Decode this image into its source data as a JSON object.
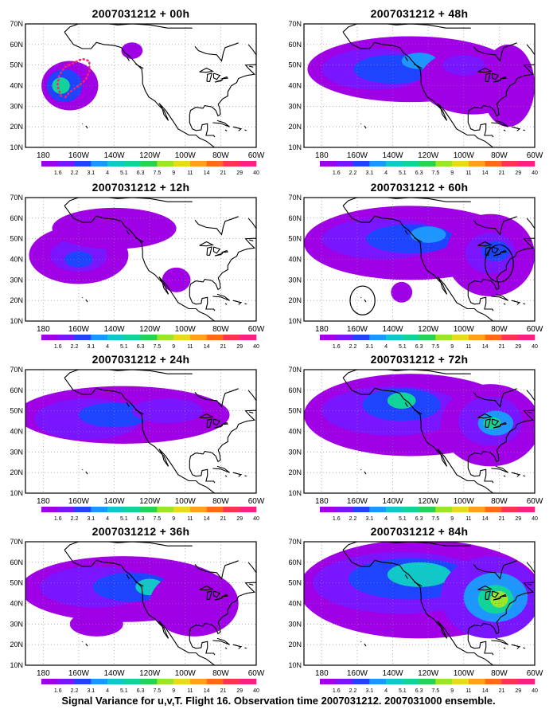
{
  "figure": {
    "caption": "Signal Variance for u,v,T. Flight 16. Observation time 2007031212. 2007031000 ensemble."
  },
  "axes": {
    "lat_labels": [
      "10N",
      "20N",
      "30N",
      "40N",
      "50N",
      "60N",
      "70N"
    ],
    "lon_labels": [
      "180",
      "160W",
      "140W",
      "120W",
      "100W",
      "80W",
      "60W"
    ],
    "lon_range": [
      -190,
      -60
    ],
    "lat_range": [
      10,
      70
    ]
  },
  "colorbar": {
    "labels": [
      "1.6",
      "2.2",
      "3.1",
      "4",
      "5.1",
      "6.3",
      "7.5",
      "9",
      "11",
      "14",
      "21",
      "29",
      "40"
    ],
    "colors": [
      "#ffffff",
      "#a000e6",
      "#7a16ff",
      "#1e44ff",
      "#1e96ff",
      "#10c8c8",
      "#10d49a",
      "#2ad252",
      "#9ae628",
      "#e6dc1a",
      "#ffa01e",
      "#ff6a1a",
      "#ff3250",
      "#ff1e82"
    ]
  },
  "panels": [
    {
      "title": "2007031212 + 00h",
      "col": 0,
      "row": 0,
      "blobs": [
        [
          -165,
          40,
          16,
          12,
          1
        ],
        [
          -168,
          40,
          10,
          8,
          3
        ],
        [
          -170,
          40,
          5,
          4,
          6
        ],
        [
          -130,
          57,
          6,
          4,
          1
        ]
      ],
      "dots": true,
      "circles": []
    },
    {
      "title": "2007031212 + 48h",
      "col": 1,
      "row": 0,
      "blobs": [
        [
          -130,
          48,
          58,
          16,
          1
        ],
        [
          -150,
          48,
          30,
          10,
          2
        ],
        [
          -140,
          48,
          22,
          7,
          3
        ],
        [
          -125,
          52,
          10,
          4,
          4
        ],
        [
          -95,
          42,
          30,
          16,
          1
        ],
        [
          -75,
          40,
          15,
          20,
          1
        ],
        [
          -100,
          50,
          12,
          5,
          2
        ]
      ],
      "dots": false,
      "circles": []
    },
    {
      "title": "2007031212 + 12h",
      "col": 0,
      "row": 1,
      "blobs": [
        [
          -160,
          42,
          28,
          14,
          1
        ],
        [
          -160,
          42,
          16,
          8,
          2
        ],
        [
          -160,
          40,
          8,
          4,
          3
        ],
        [
          -140,
          55,
          35,
          10,
          1
        ],
        [
          -105,
          30,
          8,
          6,
          1
        ]
      ],
      "dots": false,
      "circles": []
    },
    {
      "title": "2007031212 + 60h",
      "col": 1,
      "row": 1,
      "blobs": [
        [
          -130,
          48,
          60,
          18,
          1
        ],
        [
          -145,
          50,
          35,
          10,
          2
        ],
        [
          -130,
          50,
          25,
          7,
          3
        ],
        [
          -120,
          52,
          10,
          4,
          4
        ],
        [
          -85,
          42,
          25,
          20,
          1
        ],
        [
          -85,
          43,
          14,
          10,
          2
        ],
        [
          -82,
          44,
          8,
          5,
          3
        ],
        [
          -135,
          24,
          6,
          5,
          1
        ]
      ],
      "dots": false,
      "circles": [
        [
          -157,
          20,
          7,
          7
        ],
        [
          -80,
          38,
          8,
          9
        ]
      ]
    },
    {
      "title": "2007031212 + 24h",
      "col": 0,
      "row": 2,
      "blobs": [
        [
          -135,
          48,
          60,
          14,
          1
        ],
        [
          -155,
          46,
          30,
          10,
          2
        ],
        [
          -140,
          48,
          20,
          6,
          3
        ],
        [
          -110,
          50,
          20,
          6,
          2
        ]
      ],
      "dots": false,
      "circles": []
    },
    {
      "title": "2007031212 + 72h",
      "col": 1,
      "row": 2,
      "blobs": [
        [
          -130,
          48,
          60,
          20,
          1
        ],
        [
          -140,
          50,
          40,
          12,
          2
        ],
        [
          -135,
          53,
          22,
          8,
          3
        ],
        [
          -135,
          55,
          8,
          4,
          6
        ],
        [
          -85,
          43,
          28,
          20,
          1
        ],
        [
          -85,
          45,
          18,
          12,
          2
        ],
        [
          -82,
          44,
          10,
          6,
          4
        ],
        [
          -84,
          44,
          5,
          3,
          6
        ]
      ],
      "dots": false,
      "circles": []
    },
    {
      "title": "2007031212 + 36h",
      "col": 0,
      "row": 3,
      "blobs": [
        [
          -135,
          47,
          58,
          16,
          1
        ],
        [
          -150,
          48,
          32,
          10,
          2
        ],
        [
          -130,
          48,
          22,
          7,
          3
        ],
        [
          -120,
          48,
          8,
          4,
          5
        ],
        [
          -95,
          40,
          25,
          16,
          1
        ],
        [
          -150,
          30,
          15,
          6,
          1
        ]
      ],
      "dots": false,
      "circles": []
    },
    {
      "title": "2007031212 + 84h",
      "col": 1,
      "row": 3,
      "blobs": [
        [
          -125,
          47,
          68,
          24,
          1
        ],
        [
          -135,
          50,
          50,
          15,
          2
        ],
        [
          -130,
          52,
          35,
          10,
          3
        ],
        [
          -125,
          54,
          18,
          6,
          5
        ],
        [
          -85,
          43,
          28,
          20,
          2
        ],
        [
          -82,
          43,
          18,
          12,
          4
        ],
        [
          -82,
          42,
          10,
          7,
          6
        ],
        [
          -80,
          42,
          5,
          4,
          8
        ]
      ],
      "dots": false,
      "circles": []
    }
  ]
}
